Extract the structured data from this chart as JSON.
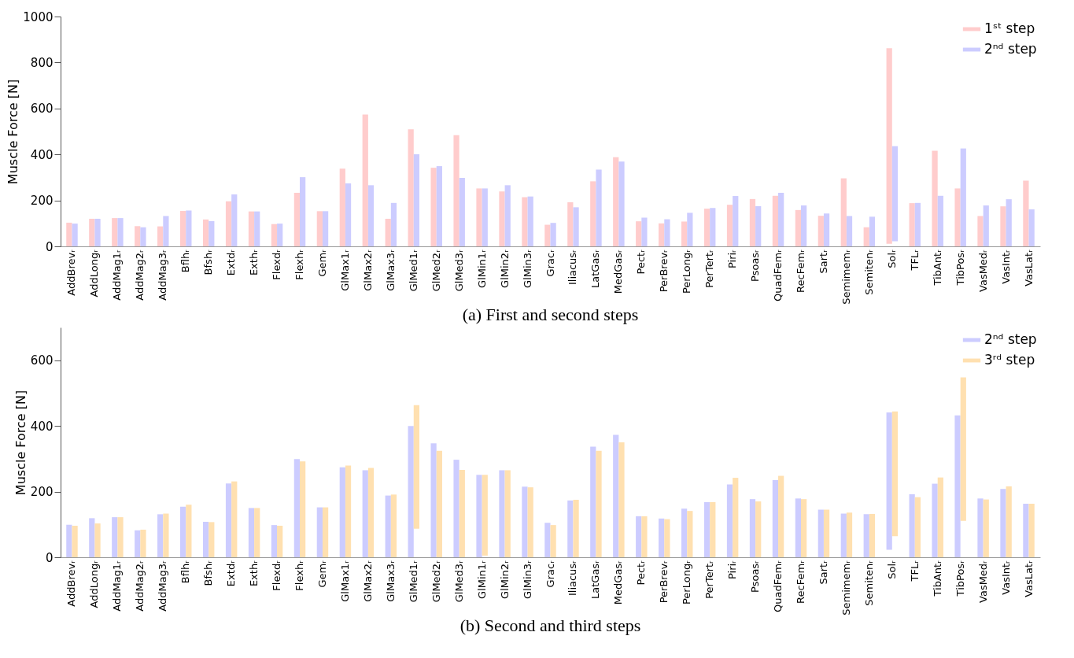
{
  "chart_data": [
    {
      "type": "bar",
      "title": "(a) First and second steps",
      "ylabel": "Muscle Force [N]",
      "categories": [
        "AddBrevᵣ",
        "AddLongᵣ",
        "AddMag1ᵣ",
        "AddMag2ᵣ",
        "AddMag3ᵣ",
        "Bflhᵣ",
        "Bfshᵣ",
        "Extdᵣ",
        "Exthᵣ",
        "Flexdᵣ",
        "Flexhᵣ",
        "Gemᵣ",
        "GlMax1ᵣ",
        "GlMax2ᵣ",
        "GlMax3ᵣ",
        "GlMed1ᵣ",
        "GlMed2ᵣ",
        "GlMed3ᵣ",
        "GlMin1ᵣ",
        "GlMin2ᵣ",
        "GlMin3ᵣ",
        "Gracᵣ",
        "Iliacusᵣ",
        "LatGasᵣ",
        "MedGasᵣ",
        "Pectᵣ",
        "PerBrevᵣ",
        "PerLongᵣ",
        "PerTertᵣ",
        "Piriᵣ",
        "Psoasᵣ",
        "QuadFemᵣ",
        "RecFemᵣ",
        "Sartᵣ",
        "Semimemᵣ",
        "Semitenᵣ",
        "Solᵣ",
        "TFLᵣ",
        "TibAntᵣ",
        "TibPosᵣ",
        "VasMedᵣ",
        "VasIntᵣ",
        "VasLatᵣ"
      ],
      "series": [
        {
          "name": "1ˢᵗ step",
          "color": "#ffcccc",
          "values": [
            103,
            120,
            123,
            88,
            87,
            154,
            117,
            196,
            152,
            97,
            233,
            153,
            338,
            574,
            120,
            509,
            342,
            484,
            252,
            239,
            214,
            94,
            192,
            283,
            388,
            109,
            100,
            108,
            164,
            181,
            206,
            220,
            158,
            133,
            296,
            83,
            851,
            188,
            416,
            252,
            132,
            174,
            286
          ],
          "base": [
            0,
            0,
            0,
            0,
            0,
            0,
            0,
            0,
            0,
            0,
            0,
            0,
            0,
            0,
            0,
            0,
            0,
            0,
            0,
            0,
            0,
            0,
            0,
            0,
            0,
            0,
            0,
            0,
            0,
            0,
            0,
            0,
            0,
            0,
            0,
            0,
            11,
            0,
            0,
            0,
            0,
            0,
            0
          ]
        },
        {
          "name": "2ⁿᵈ step",
          "color": "#ccccff",
          "values": [
            99,
            120,
            123,
            83,
            132,
            156,
            110,
            226,
            152,
            99,
            301,
            153,
            274,
            266,
            189,
            401,
            349,
            298,
            252,
            266,
            217,
            102,
            170,
            334,
            369,
            125,
            118,
            146,
            167,
            219,
            175,
            233,
            178,
            143,
            132,
            129,
            414,
            189,
            220,
            426,
            178,
            205,
            161
          ],
          "base": [
            0,
            0,
            0,
            0,
            0,
            0,
            0,
            0,
            0,
            0,
            0,
            0,
            0,
            0,
            0,
            0,
            0,
            0,
            0,
            0,
            0,
            0,
            0,
            0,
            0,
            0,
            0,
            0,
            0,
            0,
            0,
            0,
            0,
            0,
            0,
            0,
            22,
            0,
            0,
            0,
            0,
            0,
            0
          ]
        }
      ],
      "ylim": [
        0,
        1000
      ],
      "yticks": [
        0,
        200,
        400,
        600,
        800,
        1000
      ],
      "legend": "top right"
    },
    {
      "type": "bar",
      "title": "(b) Second and third steps",
      "ylabel": "Muscle Force [N]",
      "categories": [
        "AddBrevᵣ",
        "AddLongᵣ",
        "AddMag1ᵣ",
        "AddMag2ᵣ",
        "AddMag3ᵣ",
        "Bflhᵣ",
        "Bfshᵣ",
        "Extdᵣ",
        "Exthᵣ",
        "Flexdᵣ",
        "Flexhᵣ",
        "Gemᵣ",
        "GlMax1ᵣ",
        "GlMax2ᵣ",
        "GlMax3ᵣ",
        "GlMed1ᵣ",
        "GlMed2ᵣ",
        "GlMed3ᵣ",
        "GlMin1ᵣ",
        "GlMin2ᵣ",
        "GlMin3ᵣ",
        "Gracᵣ",
        "Iliacusᵣ",
        "LatGasᵣ",
        "MedGasᵣ",
        "Pectᵣ",
        "PerBrevᵣ",
        "PerLongᵣ",
        "PerTertᵣ",
        "Piriᵣ",
        "Psoasᵣ",
        "QuadFemᵣ",
        "RecFemᵣ",
        "Sartᵣ",
        "Semimemᵣ",
        "Semitenᵣ",
        "Solᵣ",
        "TFLᵣ",
        "TibAntᵣ",
        "TibPosᵣ",
        "VasMedᵣ",
        "VasIntᵣ",
        "VasLatᵣ"
      ],
      "series": [
        {
          "name": "2ⁿᵈ step",
          "color": "#ccccff",
          "values": [
            99,
            119,
            122,
            82,
            131,
            154,
            108,
            225,
            150,
            98,
            299,
            152,
            274,
            265,
            188,
            400,
            347,
            297,
            251,
            265,
            215,
            105,
            173,
            337,
            373,
            125,
            118,
            148,
            168,
            222,
            177,
            235,
            179,
            145,
            133,
            131,
            418,
            192,
            224,
            432,
            179,
            208,
            163
          ],
          "base": [
            0,
            0,
            0,
            0,
            0,
            0,
            0,
            0,
            0,
            0,
            0,
            0,
            0,
            0,
            0,
            0,
            0,
            0,
            0,
            0,
            0,
            0,
            0,
            0,
            0,
            0,
            0,
            0,
            0,
            0,
            0,
            0,
            0,
            0,
            0,
            0,
            23,
            0,
            0,
            0,
            0,
            0,
            0
          ]
        },
        {
          "name": "3ʳᵈ step",
          "color": "#ffe0b0",
          "values": [
            96,
            103,
            122,
            84,
            133,
            160,
            107,
            231,
            150,
            96,
            292,
            152,
            279,
            272,
            191,
            376,
            324,
            266,
            246,
            265,
            213,
            98,
            175,
            324,
            350,
            125,
            116,
            141,
            168,
            242,
            170,
            248,
            177,
            145,
            136,
            132,
            380,
            183,
            243,
            437,
            176,
            216,
            163
          ],
          "base": [
            0,
            0,
            0,
            0,
            0,
            0,
            0,
            0,
            0,
            0,
            0,
            0,
            0,
            0,
            0,
            87,
            0,
            0,
            5,
            0,
            0,
            0,
            0,
            0,
            0,
            0,
            0,
            0,
            0,
            0,
            0,
            0,
            0,
            0,
            0,
            0,
            64,
            0,
            0,
            111,
            0,
            0,
            0
          ]
        }
      ],
      "ylim": [
        0,
        700
      ],
      "yticks": [
        0,
        200,
        400,
        600
      ],
      "legend": "top right"
    }
  ]
}
